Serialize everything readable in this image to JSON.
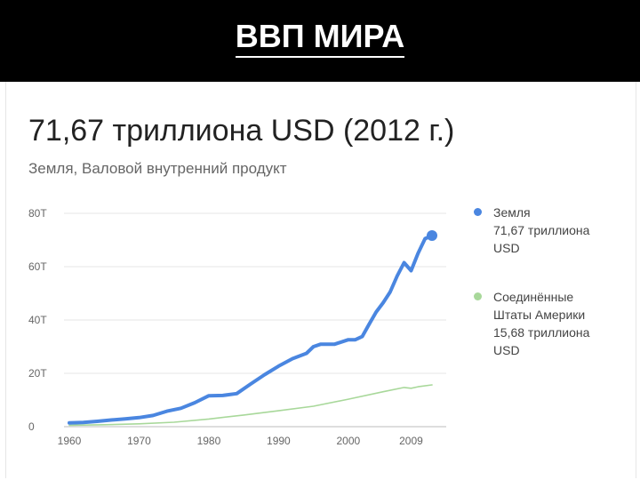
{
  "slide": {
    "title": "ВВП МИРА"
  },
  "card": {
    "headline": "71,67 триллиона USD (2012 г.)",
    "subtitle": "Земля, Валовой внутренний продукт"
  },
  "chart_data": {
    "type": "line",
    "x_ticks": [
      1960,
      1970,
      1980,
      1990,
      2000,
      2009
    ],
    "y_ticks": [
      {
        "value": 0,
        "label": "0"
      },
      {
        "value": 20,
        "label": "20T"
      },
      {
        "value": 40,
        "label": "40T"
      },
      {
        "value": 60,
        "label": "60T"
      },
      {
        "value": 80,
        "label": "80T"
      }
    ],
    "xlim": [
      1960,
      2012
    ],
    "ylim": [
      0,
      80
    ],
    "grid": "horizontal",
    "legend_placement": "right",
    "series": [
      {
        "name": "Земля",
        "value_label": "71,67 триллиона USD",
        "value_lines": [
          "71,67 триллиона",
          "USD"
        ],
        "color": "#4a86e0",
        "endpoint_marker": true,
        "x": [
          1960,
          1962,
          1964,
          1966,
          1968,
          1970,
          1972,
          1974,
          1976,
          1978,
          1980,
          1982,
          1984,
          1986,
          1988,
          1990,
          1992,
          1994,
          1995,
          1996,
          1998,
          2000,
          2001,
          2002,
          2003,
          2004,
          2005,
          2006,
          2007,
          2008,
          2009,
          2010,
          2011,
          2012
        ],
        "y": [
          1.4,
          1.6,
          2.0,
          2.5,
          2.9,
          3.4,
          4.2,
          5.8,
          6.9,
          9.0,
          11.6,
          11.7,
          12.4,
          16.0,
          19.5,
          22.7,
          25.5,
          27.5,
          30.0,
          30.9,
          30.9,
          32.6,
          32.6,
          33.8,
          38.5,
          43.0,
          46.5,
          50.5,
          56.5,
          61.5,
          58.5,
          65.0,
          70.5,
          71.67
        ]
      },
      {
        "name": "Соединённые Штаты Америки",
        "name_lines": [
          "Соединённые",
          "Штаты Америки"
        ],
        "value_label": "15,68 триллиона USD",
        "value_lines": [
          "15,68 триллиона",
          "USD"
        ],
        "color": "#a8d89a",
        "x": [
          1960,
          1965,
          1970,
          1975,
          1980,
          1985,
          1990,
          1995,
          2000,
          2005,
          2008,
          2009,
          2010,
          2012
        ],
        "y": [
          0.52,
          0.72,
          1.07,
          1.68,
          2.86,
          4.35,
          5.98,
          7.66,
          10.29,
          13.1,
          14.7,
          14.4,
          14.96,
          15.68
        ]
      }
    ]
  }
}
